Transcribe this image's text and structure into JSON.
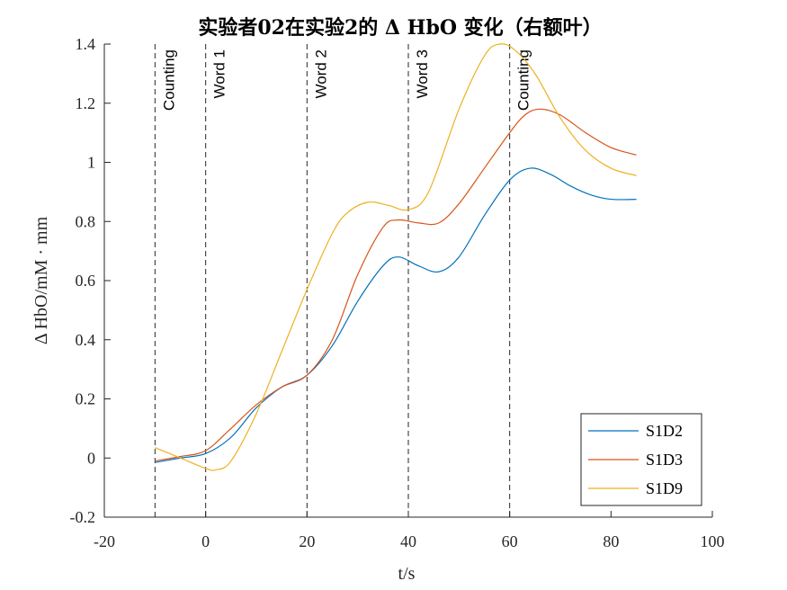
{
  "chart_data": {
    "type": "line",
    "title": "实验者02在实验2的 Δ HbO 变化（右额叶）",
    "xlabel": "t/s",
    "ylabel": "Δ HbO/mM · mm",
    "xlim": [
      -20,
      100
    ],
    "ylim": [
      -0.2,
      1.4
    ],
    "xticks": [
      -20,
      0,
      20,
      40,
      60,
      80,
      100
    ],
    "yticks": [
      -0.2,
      0,
      0.2,
      0.4,
      0.6,
      0.8,
      1,
      1.2,
      1.4
    ],
    "xtick_labels": [
      "-20",
      "0",
      "20",
      "40",
      "60",
      "80",
      "100"
    ],
    "ytick_labels": [
      "-0.2",
      "0",
      "0.2",
      "0.4",
      "0.6",
      "0.8",
      "1",
      "1.2",
      "1.4"
    ],
    "grid": false,
    "legend_position": "bottom-right",
    "markers": [
      {
        "x": -10,
        "label": "Counting"
      },
      {
        "x": 0,
        "label": "Word 1"
      },
      {
        "x": 20,
        "label": "Word 2"
      },
      {
        "x": 40,
        "label": "Word 3"
      },
      {
        "x": 60,
        "label": "Counting"
      }
    ],
    "series": [
      {
        "name": "S1D2",
        "color": "#0072BD",
        "x": [
          -10,
          -5,
          0,
          5,
          10,
          15,
          20,
          25,
          30,
          35,
          38,
          42,
          46,
          50,
          55,
          60,
          64,
          68,
          72,
          76,
          80,
          85
        ],
        "y": [
          -0.015,
          0.0,
          0.015,
          0.07,
          0.17,
          0.24,
          0.28,
          0.38,
          0.53,
          0.65,
          0.68,
          0.65,
          0.63,
          0.68,
          0.82,
          0.94,
          0.98,
          0.96,
          0.92,
          0.89,
          0.875,
          0.875
        ]
      },
      {
        "name": "S1D3",
        "color": "#D95319",
        "x": [
          -10,
          -5,
          0,
          5,
          10,
          15,
          20,
          25,
          30,
          35,
          38,
          42,
          46,
          50,
          55,
          60,
          63,
          66,
          70,
          75,
          80,
          85
        ],
        "y": [
          -0.01,
          0.005,
          0.025,
          0.1,
          0.18,
          0.24,
          0.28,
          0.4,
          0.62,
          0.78,
          0.805,
          0.795,
          0.795,
          0.86,
          0.98,
          1.1,
          1.16,
          1.18,
          1.16,
          1.1,
          1.05,
          1.025
        ]
      },
      {
        "name": "S1D9",
        "color": "#EDB120",
        "x": [
          -10,
          -5,
          0,
          2,
          5,
          10,
          15,
          20,
          25,
          28,
          32,
          36,
          40,
          44,
          50,
          55,
          58,
          61,
          65,
          70,
          75,
          80,
          85
        ],
        "y": [
          0.035,
          0.0,
          -0.035,
          -0.04,
          -0.01,
          0.15,
          0.36,
          0.57,
          0.76,
          0.83,
          0.865,
          0.855,
          0.84,
          0.9,
          1.18,
          1.36,
          1.4,
          1.38,
          1.3,
          1.15,
          1.04,
          0.98,
          0.955
        ]
      }
    ]
  }
}
